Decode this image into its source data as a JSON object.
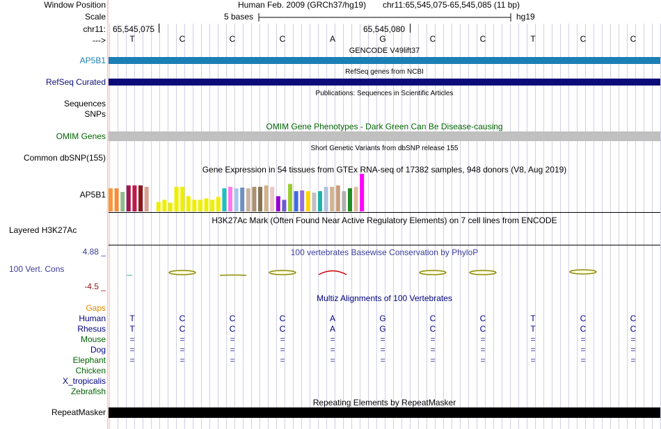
{
  "labels": {
    "window_position": "Window Position",
    "scale": "Scale",
    "chrom": "chr11:",
    "arrow": "--->",
    "ap5b1_gene": "AP5B1",
    "refseq": "RefSeq Curated",
    "sequences": "Sequences",
    "snps": "SNPs",
    "omim": "OMIM Genes",
    "dbsnp": "Common dbSNP(155)",
    "gtex": "AP5B1",
    "h3k27ac": "Layered H3K27Ac",
    "cons_max": "4.88 _",
    "cons": "100 Vert. Cons",
    "cons_min": "-4.5 _",
    "gaps": "Gaps",
    "repeat": "RepeatMasker"
  },
  "header": {
    "assembly": "Human Feb. 2009 (GRCh37/hg19)",
    "position": "chr11:65,545,075-65,545,085 (11 bp)",
    "scale_text": "5 bases",
    "scale_db": "hg19",
    "coord1": "65,545,075",
    "coord2": "65,545,080"
  },
  "bases": [
    "T",
    "C",
    "C",
    "C",
    "A",
    "G",
    "C",
    "C",
    "T",
    "C",
    "C"
  ],
  "titles": {
    "gencode": "GENCODE V49lift37",
    "refseq": "RefSeq genes from NCBI",
    "publications": "Publications: Sequences in Scientific Articles",
    "omim": "OMIM Gene Phenotypes - Dark Green Can Be Disease-causing",
    "dbsnp": "Short Genetic Variants from dbSNP release 155",
    "gtex": "Gene Expression in 54 tissues from GTEx RNA-seq of 17382 samples, 948 donors (V8, Aug 2019)",
    "h3k27ac": "H3K27Ac Mark (Often Found Near Active Regulatory Elements) on 7 cell lines from ENCODE",
    "cons": "100 vertebrates Basewise Conservation by PhyloP",
    "multiz": "Multiz Alignments of 100 Vertebrates",
    "repeat": "Repeating Elements by RepeatMasker"
  },
  "alignment": [
    {
      "species": "Human",
      "color": "#000080",
      "row": [
        "T",
        "C",
        "C",
        "C",
        "A",
        "G",
        "C",
        "C",
        "T",
        "C",
        "C"
      ]
    },
    {
      "species": "Rhesus",
      "color": "#000080",
      "row": [
        "T",
        "C",
        "C",
        "C",
        "A",
        "G",
        "C",
        "C",
        "T",
        "C",
        "C"
      ]
    },
    {
      "species": "Mouse",
      "color": "#006400",
      "row": [
        "=",
        "=",
        "=",
        "=",
        "=",
        "=",
        "=",
        "=",
        "=",
        "=",
        "="
      ]
    },
    {
      "species": "Dog",
      "color": "#000080",
      "row": [
        "=",
        "=",
        "=",
        "=",
        "=",
        "=",
        "=",
        "=",
        "=",
        "=",
        "="
      ]
    },
    {
      "species": "Elephant",
      "color": "#006400",
      "row": [
        "=",
        "=",
        "=",
        "=",
        "=",
        "=",
        "=",
        "=",
        "=",
        "=",
        "="
      ]
    },
    {
      "species": "Chicken",
      "color": "#006400",
      "row": [
        "",
        "",
        "",
        "",
        "",
        "",
        "",
        "",
        "",
        "",
        ""
      ]
    },
    {
      "species": "X_tropicalis",
      "color": "#000080",
      "row": [
        "",
        "",
        "",
        "",
        "",
        "",
        "",
        "",
        "",
        "",
        ""
      ]
    },
    {
      "species": "Zebrafish",
      "color": "#006400",
      "row": [
        "",
        "",
        "",
        "",
        "",
        "",
        "",
        "",
        "",
        "",
        ""
      ]
    }
  ],
  "colors": {
    "gencode": "#1a7fb5",
    "refseq": "#0c0c78",
    "omim_bar": "#c0c0c0",
    "omim_text": "#006400",
    "cons_text": "#3c3c9c",
    "cons_min": "#8b1a1a",
    "gaps": "#e08a00",
    "repeat": "#000000",
    "gridline": "#cfcfe8",
    "leftline": "#e7a0a0"
  },
  "gtex_colors": [
    "#f59a3c",
    "#f58c3a",
    "#8fbc8f",
    "#a0184b",
    "#c0184b",
    "#8b1a1a",
    "#d8a090",
    "#eeeeee",
    "#eeee00",
    "#eeee00",
    "#eeee00",
    "#eeee00",
    "#eeee00",
    "#eeee00",
    "#eeee00",
    "#eeee00",
    "#eeee00",
    "#eeee00",
    "#eeee00",
    "#20c0c0",
    "#ff77ee",
    "#a8c8e8",
    "#6e90c0",
    "#c8b4a0",
    "#a89070",
    "#8b7355",
    "#d2b48c",
    "#e8c8c8",
    "#9400d3",
    "#6a5acd",
    "#9acd32",
    "#4169e1",
    "#9370db",
    "#ffd700",
    "#c0c0c0",
    "#20b2aa",
    "#b0c4de",
    "#d2b48c",
    "#c8a080",
    "#b0b0b0",
    "#228b22",
    "#e0c0a0",
    "#ff00ff"
  ],
  "gtex_values": [
    32,
    32,
    27,
    36,
    36,
    36,
    34,
    0,
    13,
    16,
    12,
    34,
    34,
    21,
    16,
    16,
    18,
    16,
    20,
    32,
    34,
    32,
    33,
    32,
    34,
    34,
    36,
    34,
    21,
    16,
    38,
    28,
    29,
    28,
    26,
    28,
    34,
    34,
    36,
    28,
    32,
    34,
    52
  ]
}
